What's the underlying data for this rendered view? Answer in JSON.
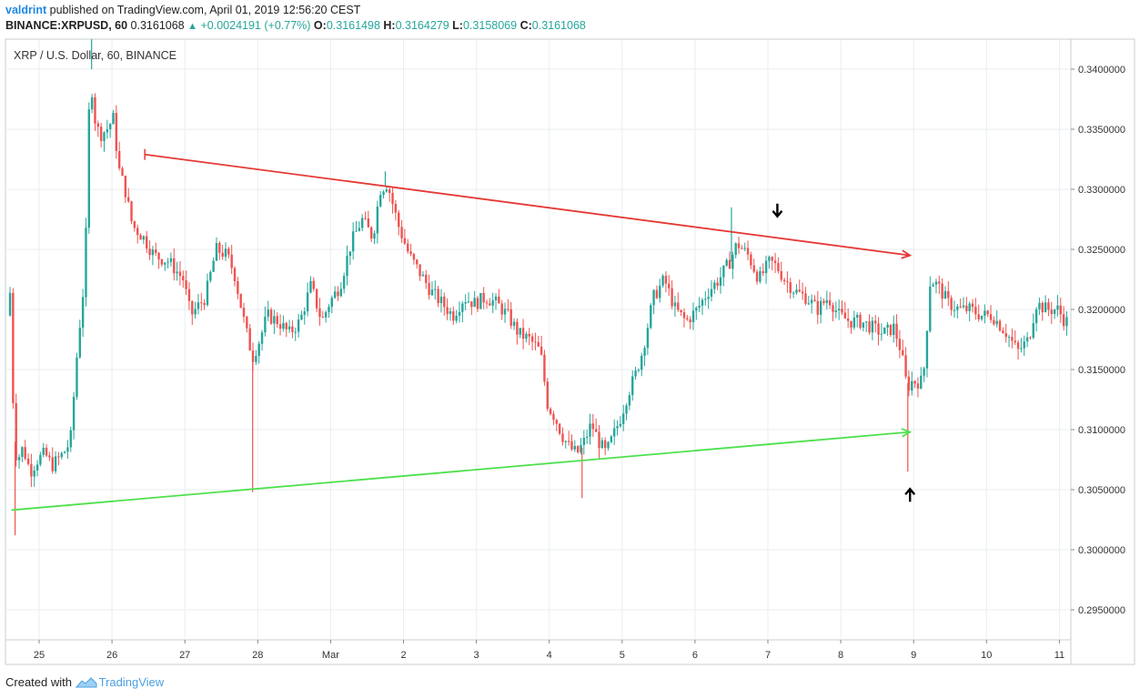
{
  "header": {
    "author": "valdrint",
    "published": "published on TradingView.com, April 01, 2019 12:56:20 CEST",
    "symbol": "BINANCE:XRPUSD, 60",
    "last": "0.3161068",
    "change": "+0.0024191 (+0.77%)",
    "o_label": "O:",
    "o": "0.3161498",
    "h_label": "H:",
    "h": "0.3164279",
    "l_label": "L:",
    "l": "0.3158069",
    "c_label": "C:",
    "c": "0.3161068"
  },
  "footer": {
    "created_with": "Created with",
    "brand": "TradingView"
  },
  "colors": {
    "up": "#26a69a",
    "down": "#ef5350",
    "resistance": "#e53935",
    "support": "#4ee04e",
    "grid": "#e8eef2"
  },
  "chart_data": {
    "type": "candlestick",
    "title": "XRP / U.S. Dollar, 60, BINANCE",
    "ylim": [
      0.2925,
      0.3425
    ],
    "y_ticks": [
      "0.3400000",
      "0.3350000",
      "0.3300000",
      "0.3250000",
      "0.3200000",
      "0.3150000",
      "0.3100000",
      "0.3050000",
      "0.3000000",
      "0.2950000"
    ],
    "y_tick_values": [
      0.34,
      0.335,
      0.33,
      0.325,
      0.32,
      0.315,
      0.31,
      0.305,
      0.3,
      0.295
    ],
    "x_ticks": [
      "25",
      "26",
      "27",
      "28",
      "Mar",
      "2",
      "3",
      "4",
      "5",
      "6",
      "7",
      "8",
      "9",
      "10",
      "11"
    ],
    "x_tick_days": [
      0,
      1,
      2,
      3,
      4,
      5,
      6,
      7,
      8,
      9,
      10,
      11,
      12,
      13,
      14
    ],
    "x_range_days": [
      -0.45,
      14.2
    ],
    "price_path": [
      [
        -0.42,
        0.3195
      ],
      [
        -0.38,
        0.3215
      ],
      [
        -0.35,
        0.3195
      ],
      [
        -0.33,
        0.309
      ],
      [
        -0.28,
        0.3075
      ],
      [
        -0.2,
        0.3085
      ],
      [
        -0.1,
        0.3065
      ],
      [
        0,
        0.3075
      ],
      [
        0.1,
        0.308
      ],
      [
        0.2,
        0.307
      ],
      [
        0.35,
        0.308
      ],
      [
        0.45,
        0.309
      ],
      [
        0.55,
        0.317
      ],
      [
        0.65,
        0.323
      ],
      [
        0.72,
        0.34
      ],
      [
        0.78,
        0.336
      ],
      [
        0.85,
        0.3345
      ],
      [
        0.95,
        0.335
      ],
      [
        1.05,
        0.336
      ],
      [
        1.1,
        0.332
      ],
      [
        1.2,
        0.33
      ],
      [
        1.3,
        0.327
      ],
      [
        1.45,
        0.326
      ],
      [
        1.6,
        0.3245
      ],
      [
        1.8,
        0.324
      ],
      [
        2.0,
        0.3225
      ],
      [
        2.1,
        0.3195
      ],
      [
        2.3,
        0.321
      ],
      [
        2.45,
        0.325
      ],
      [
        2.6,
        0.3245
      ],
      [
        2.7,
        0.323
      ],
      [
        2.85,
        0.3185
      ],
      [
        2.95,
        0.316
      ],
      [
        3.05,
        0.3175
      ],
      [
        3.15,
        0.3195
      ],
      [
        3.3,
        0.319
      ],
      [
        3.45,
        0.318
      ],
      [
        3.6,
        0.319
      ],
      [
        3.75,
        0.322
      ],
      [
        3.9,
        0.319
      ],
      [
        4.0,
        0.3205
      ],
      [
        4.15,
        0.322
      ],
      [
        4.3,
        0.3255
      ],
      [
        4.45,
        0.3275
      ],
      [
        4.6,
        0.326
      ],
      [
        4.7,
        0.33
      ],
      [
        4.8,
        0.3305
      ],
      [
        4.95,
        0.327
      ],
      [
        5.1,
        0.3245
      ],
      [
        5.25,
        0.323
      ],
      [
        5.4,
        0.3215
      ],
      [
        5.55,
        0.3205
      ],
      [
        5.7,
        0.3195
      ],
      [
        5.85,
        0.321
      ],
      [
        6.0,
        0.3205
      ],
      [
        6.15,
        0.321
      ],
      [
        6.3,
        0.3205
      ],
      [
        6.45,
        0.3195
      ],
      [
        6.6,
        0.318
      ],
      [
        6.75,
        0.3175
      ],
      [
        6.9,
        0.3165
      ],
      [
        7.0,
        0.312
      ],
      [
        7.1,
        0.311
      ],
      [
        7.2,
        0.3095
      ],
      [
        7.3,
        0.3085
      ],
      [
        7.4,
        0.308
      ],
      [
        7.5,
        0.309
      ],
      [
        7.6,
        0.3105
      ],
      [
        7.7,
        0.309
      ],
      [
        7.8,
        0.308
      ],
      [
        7.9,
        0.3095
      ],
      [
        8.0,
        0.311
      ],
      [
        8.1,
        0.313
      ],
      [
        8.2,
        0.3145
      ],
      [
        8.3,
        0.3165
      ],
      [
        8.45,
        0.321
      ],
      [
        8.6,
        0.3225
      ],
      [
        8.75,
        0.32
      ],
      [
        8.9,
        0.319
      ],
      [
        9.05,
        0.32
      ],
      [
        9.2,
        0.3215
      ],
      [
        9.35,
        0.3225
      ],
      [
        9.5,
        0.324
      ],
      [
        9.6,
        0.3255
      ],
      [
        9.75,
        0.3245
      ],
      [
        9.9,
        0.3225
      ],
      [
        10.05,
        0.324
      ],
      [
        10.15,
        0.3235
      ],
      [
        10.25,
        0.3225
      ],
      [
        10.4,
        0.3215
      ],
      [
        10.55,
        0.321
      ],
      [
        10.7,
        0.32
      ],
      [
        10.85,
        0.321
      ],
      [
        11.0,
        0.3195
      ],
      [
        11.15,
        0.319
      ],
      [
        11.3,
        0.319
      ],
      [
        11.45,
        0.3185
      ],
      [
        11.6,
        0.318
      ],
      [
        11.75,
        0.3185
      ],
      [
        11.85,
        0.3165
      ],
      [
        11.93,
        0.3135
      ],
      [
        12.0,
        0.314
      ],
      [
        12.15,
        0.314
      ],
      [
        12.25,
        0.3225
      ],
      [
        12.35,
        0.322
      ],
      [
        12.5,
        0.3205
      ],
      [
        12.65,
        0.32
      ],
      [
        12.8,
        0.32
      ],
      [
        12.95,
        0.3195
      ],
      [
        13.1,
        0.3195
      ],
      [
        13.3,
        0.318
      ],
      [
        13.45,
        0.3165
      ],
      [
        13.6,
        0.3175
      ],
      [
        13.7,
        0.3205
      ],
      [
        13.85,
        0.32
      ],
      [
        14.0,
        0.32
      ],
      [
        14.1,
        0.319
      ]
    ],
    "spikes": [
      {
        "x": 2.93,
        "low": 0.3048
      },
      {
        "x": 7.45,
        "low": 0.3043
      },
      {
        "x": 11.92,
        "low": 0.3065
      },
      {
        "x": -0.33,
        "low": 0.3012
      },
      {
        "x": 0.72,
        "high": 0.3425
      },
      {
        "x": 4.75,
        "high": 0.3315
      },
      {
        "x": 9.5,
        "high": 0.3285
      }
    ],
    "trendlines": [
      {
        "name": "resistance",
        "x1": 1.45,
        "y1": 0.3329,
        "x2": 11.95,
        "y2": 0.3245
      },
      {
        "name": "support",
        "x1": -0.38,
        "y1": 0.3033,
        "x2": 11.95,
        "y2": 0.3098
      }
    ],
    "markers": [
      {
        "x": 10.13,
        "price": 0.3282,
        "dir": "down"
      },
      {
        "x": 11.95,
        "price": 0.3046,
        "dir": "up"
      }
    ]
  }
}
